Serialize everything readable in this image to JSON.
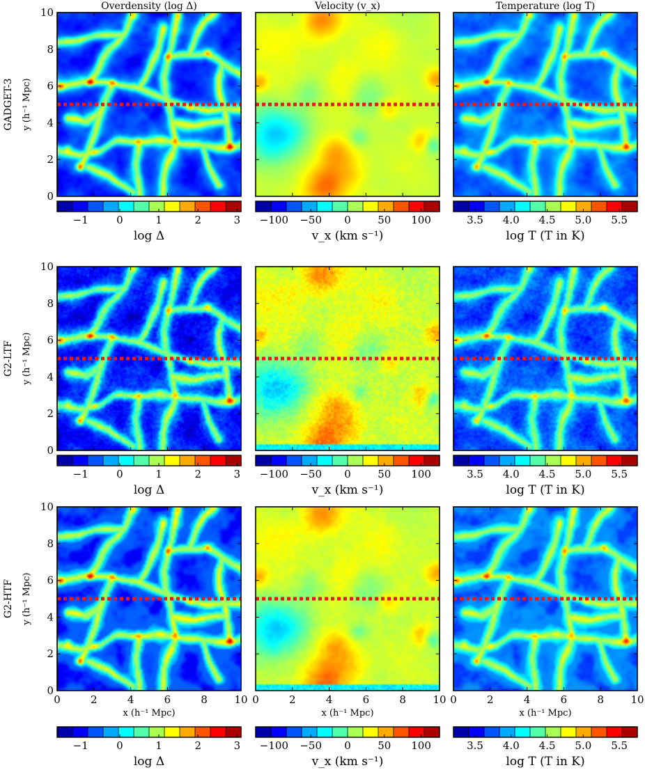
{
  "chart_data": {
    "type": "heatmap",
    "columns": [
      {
        "title": "Overdensity (log Δ)",
        "kind": "density",
        "colorbar": {
          "label": "log Δ",
          "range": [
            -1.6,
            3.1
          ],
          "ticks": [
            -1,
            0,
            1,
            2,
            3
          ],
          "tick_labels": [
            "−1",
            "0",
            "1",
            "2",
            "3"
          ]
        }
      },
      {
        "title": "Velocity (v_x)",
        "kind": "velocity",
        "colorbar": {
          "label": "v_x (km s⁻¹)",
          "range": [
            -125,
            125
          ],
          "ticks": [
            -100,
            -50,
            0,
            50,
            100
          ],
          "tick_labels": [
            "−100",
            "−50",
            "0",
            "50",
            "100"
          ]
        }
      },
      {
        "title": "Temperature (log T)",
        "kind": "temperature",
        "colorbar": {
          "label": "log T (T in K)",
          "range": [
            3.2,
            5.75
          ],
          "ticks": [
            3.5,
            4.0,
            4.5,
            5.0,
            5.5
          ],
          "tick_labels": [
            "3.5",
            "4.0",
            "4.5",
            "5.0",
            "5.5"
          ]
        }
      }
    ],
    "rows": [
      {
        "label": "GADGET-3",
        "style": "smooth"
      },
      {
        "label": "G2-LTF",
        "style": "noisy"
      },
      {
        "label": "G2-HTF",
        "style": "edges"
      }
    ],
    "xlabel": "x (h⁻¹ Mpc)",
    "ylabel": "y (h⁻¹ Mpc)",
    "xlim": [
      0,
      10
    ],
    "ylim": [
      0,
      10
    ],
    "x_ticks": [
      0,
      2,
      4,
      6,
      8,
      10
    ],
    "y_ticks": [
      0,
      2,
      4,
      6,
      8,
      10
    ],
    "dashed_line": {
      "y": 5,
      "color": "#e41a1c",
      "style": "dotted"
    },
    "filaments": [
      [
        [
          0.0,
          6.0
        ],
        [
          1.0,
          6.0
        ],
        [
          1.8,
          6.2
        ],
        [
          3.0,
          6.2
        ],
        [
          4.5,
          5.8
        ],
        [
          6.0,
          5.2
        ],
        [
          7.2,
          4.8
        ],
        [
          8.2,
          4.6
        ],
        [
          10.0,
          4.8
        ]
      ],
      [
        [
          1.8,
          6.2
        ],
        [
          2.4,
          7.2
        ],
        [
          2.9,
          8.0
        ],
        [
          3.6,
          8.9
        ],
        [
          4.2,
          10.0
        ]
      ],
      [
        [
          6.0,
          7.6
        ],
        [
          6.3,
          8.6
        ],
        [
          6.6,
          10.0
        ]
      ],
      [
        [
          6.0,
          7.6
        ],
        [
          5.8,
          6.4
        ],
        [
          6.0,
          5.2
        ],
        [
          6.2,
          4.0
        ],
        [
          6.4,
          3.0
        ],
        [
          6.0,
          1.8
        ],
        [
          5.7,
          0.0
        ]
      ],
      [
        [
          6.0,
          7.6
        ],
        [
          7.2,
          7.7
        ],
        [
          8.2,
          7.8
        ],
        [
          9.0,
          7.2
        ],
        [
          9.6,
          6.8
        ],
        [
          10.0,
          6.6
        ]
      ],
      [
        [
          0.0,
          2.6
        ],
        [
          1.2,
          2.3
        ],
        [
          2.2,
          2.4
        ],
        [
          3.2,
          2.9
        ],
        [
          4.4,
          3.0
        ],
        [
          5.2,
          3.0
        ],
        [
          6.4,
          3.0
        ],
        [
          7.8,
          2.7
        ],
        [
          9.4,
          2.7
        ],
        [
          10.0,
          2.9
        ]
      ],
      [
        [
          1.2,
          1.6
        ],
        [
          1.6,
          2.4
        ],
        [
          2.0,
          3.6
        ],
        [
          2.4,
          4.8
        ],
        [
          3.0,
          6.2
        ]
      ],
      [
        [
          4.4,
          3.0
        ],
        [
          4.2,
          1.8
        ],
        [
          4.5,
          0.0
        ]
      ],
      [
        [
          9.4,
          2.7
        ],
        [
          9.2,
          4.0
        ],
        [
          9.0,
          5.2
        ],
        [
          8.8,
          6.4
        ],
        [
          9.0,
          7.2
        ]
      ],
      [
        [
          1.6,
          1.6
        ],
        [
          2.8,
          1.2
        ],
        [
          3.6,
          0.6
        ],
        [
          4.1,
          0.2
        ]
      ],
      [
        [
          0.0,
          8.4
        ],
        [
          1.2,
          8.6
        ],
        [
          2.4,
          8.8
        ],
        [
          3.6,
          8.9
        ]
      ],
      [
        [
          7.2,
          7.7
        ],
        [
          7.6,
          8.6
        ],
        [
          8.0,
          9.4
        ],
        [
          8.6,
          10.0
        ]
      ],
      [
        [
          4.5,
          5.8
        ],
        [
          5.0,
          7.0
        ],
        [
          5.4,
          8.0
        ],
        [
          5.8,
          9.2
        ]
      ],
      [
        [
          7.8,
          2.7
        ],
        [
          8.2,
          1.6
        ],
        [
          8.8,
          0.6
        ]
      ],
      [
        [
          0.6,
          4.2
        ],
        [
          1.6,
          4.0
        ],
        [
          2.4,
          4.8
        ]
      ],
      [
        [
          6.2,
          4.0
        ],
        [
          7.4,
          3.8
        ],
        [
          8.6,
          4.0
        ],
        [
          9.2,
          4.0
        ]
      ]
    ],
    "nodes": [
      [
        1.8,
        6.2,
        1.6
      ],
      [
        6.0,
        7.6,
        1.3
      ],
      [
        9.4,
        2.7,
        1.6
      ],
      [
        1.2,
        1.6,
        1.1
      ],
      [
        3.0,
        6.2,
        1.0
      ],
      [
        7.2,
        4.8,
        0.9
      ],
      [
        4.4,
        3.0,
        0.8
      ],
      [
        6.4,
        3.0,
        0.9
      ],
      [
        2.0,
        2.4,
        0.7
      ],
      [
        8.2,
        7.8,
        0.8
      ],
      [
        0.2,
        6.0,
        1.0
      ],
      [
        0.6,
        2.6,
        0.9
      ],
      [
        4.2,
        9.8,
        0.7
      ],
      [
        6.6,
        9.8,
        0.7
      ]
    ],
    "velocity_blobs": [
      [
        3.6,
        9.6,
        1.0,
        1.6
      ],
      [
        3.8,
        0.6,
        1.1,
        1.8
      ],
      [
        4.4,
        2.4,
        0.9,
        1.3
      ],
      [
        9.8,
        6.4,
        0.6,
        1.6
      ],
      [
        9.0,
        3.0,
        0.6,
        1.3
      ],
      [
        7.2,
        4.8,
        0.6,
        0.9
      ],
      [
        5.2,
        1.2,
        0.9,
        0.8
      ],
      [
        0.2,
        6.2,
        0.5,
        1.2
      ],
      [
        0.8,
        2.8,
        1.4,
        -1.5
      ],
      [
        2.0,
        3.6,
        1.2,
        -1.0
      ],
      [
        2.8,
        5.6,
        0.8,
        -0.7
      ],
      [
        6.2,
        5.4,
        1.0,
        -0.8
      ],
      [
        5.6,
        3.2,
        0.5,
        -0.9
      ],
      [
        0.8,
        4.0,
        1.2,
        -1.0
      ],
      [
        9.6,
        2.8,
        0.5,
        -1.5
      ],
      [
        8.6,
        9.6,
        1.4,
        -0.3
      ],
      [
        1.2,
        8.0,
        1.6,
        0.3
      ],
      [
        4.8,
        6.4,
        1.0,
        0.5
      ],
      [
        6.8,
        8.2,
        1.2,
        0.4
      ],
      [
        6.4,
        0.4,
        1.2,
        -0.2
      ]
    ]
  }
}
